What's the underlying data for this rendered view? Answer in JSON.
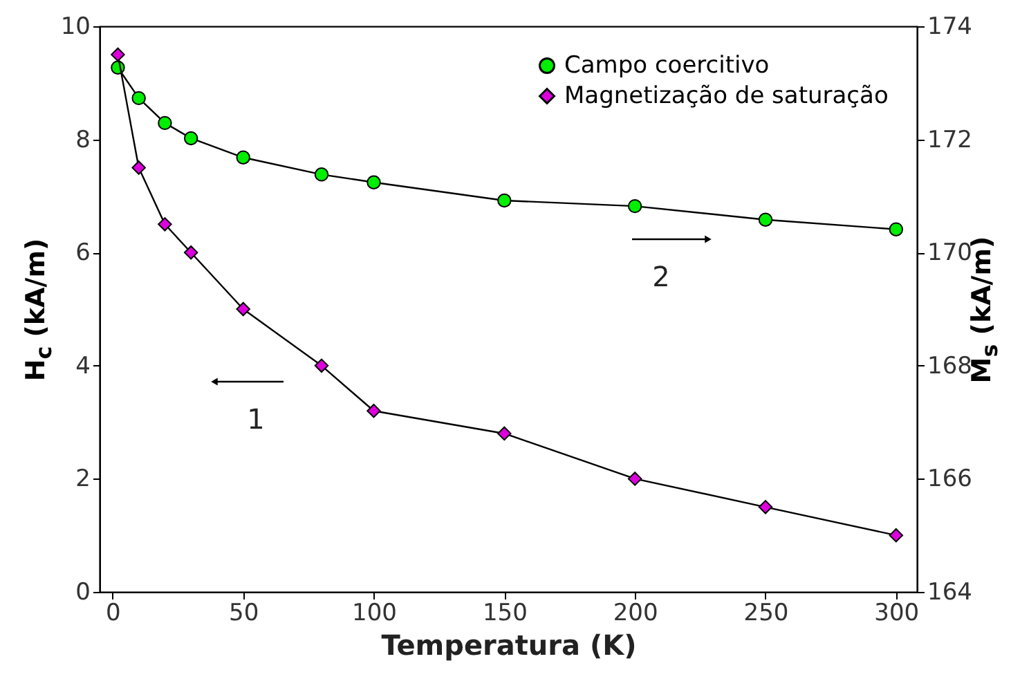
{
  "chart_data": {
    "type": "line",
    "xlabel": "Temperatura (K)",
    "ylabel": "H$_{c}$ (kA/m)",
    "y2label": "M$_{s}$ (kA/m)",
    "x": [
      2,
      10,
      20,
      30,
      50,
      80,
      100,
      150,
      200,
      250,
      300
    ],
    "series": [
      {
        "name": "Campo coercitivo",
        "color": "#00ee00",
        "marker": "circle",
        "axis": "y2",
        "values": [
          173.27,
          172.73,
          172.29,
          172.02,
          171.68,
          171.38,
          171.24,
          170.92,
          170.82,
          170.58,
          170.41
        ]
      },
      {
        "name": "Magnetização de saturação",
        "color": "#dd00dd",
        "marker": "diamond",
        "axis": "y",
        "values": [
          9.5,
          7.5,
          6.5,
          6.0,
          5.0,
          4.0,
          3.2,
          2.8,
          2.0,
          1.5,
          1.0
        ]
      }
    ],
    "xlim": [
      -5,
      308
    ],
    "xticks": [
      0,
      50,
      100,
      150,
      200,
      250,
      300
    ],
    "ylim": [
      0,
      10
    ],
    "yticks": [
      0,
      2,
      4,
      6,
      8,
      10
    ],
    "y2lim": [
      164,
      174
    ],
    "y2ticks": [
      164,
      166,
      168,
      170,
      172,
      174
    ],
    "legend": "top right",
    "grid": false,
    "annotations": [
      "1",
      "2"
    ]
  }
}
